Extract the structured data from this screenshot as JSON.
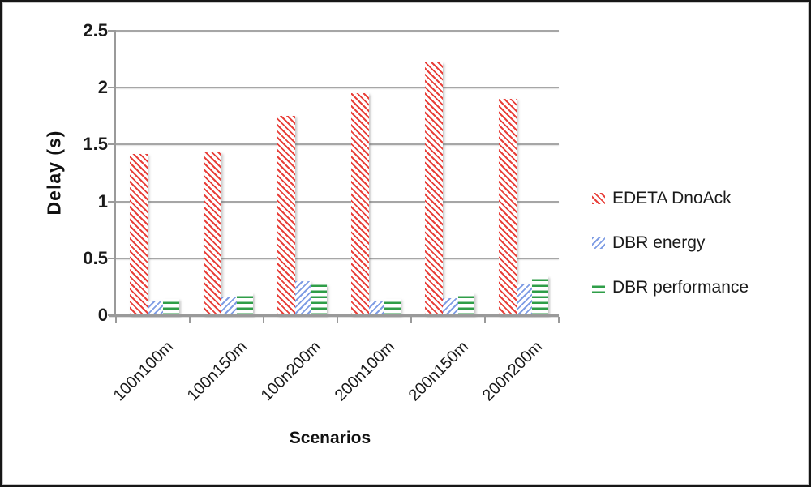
{
  "chart_data": {
    "type": "bar",
    "title": "",
    "xlabel": "Scenarios",
    "ylabel": "Delay (s)",
    "categories": [
      "100n100m",
      "100n150m",
      "100n200m",
      "200n100m",
      "200n150m",
      "200n200m"
    ],
    "series": [
      {
        "name": "EDETA DnoAck",
        "color": "#e8403a",
        "hatch": "diagonal-down",
        "values": [
          1.42,
          1.43,
          1.75,
          1.95,
          2.22,
          1.9
        ]
      },
      {
        "name": "DBR energy",
        "color": "#7f9de4",
        "hatch": "diagonal-up",
        "values": [
          0.13,
          0.16,
          0.3,
          0.13,
          0.15,
          0.28
        ]
      },
      {
        "name": "DBR performance",
        "color": "#2f9e48",
        "hatch": "horizontal",
        "values": [
          0.14,
          0.19,
          0.27,
          0.14,
          0.19,
          0.34
        ]
      }
    ],
    "ylim": [
      0,
      2.5
    ],
    "yticks": [
      0,
      0.5,
      1,
      1.5,
      2,
      2.5
    ],
    "ytick_labels": [
      "0",
      "0.5",
      "1",
      "1.5",
      "2",
      "2.5"
    ],
    "grid": true,
    "legend_position": "right"
  },
  "colors": {
    "grid": "#a6a6a6",
    "axis": "#9a9a9a",
    "text": "#1a1a1a",
    "frame": "#161616",
    "background": "#ffffff"
  }
}
